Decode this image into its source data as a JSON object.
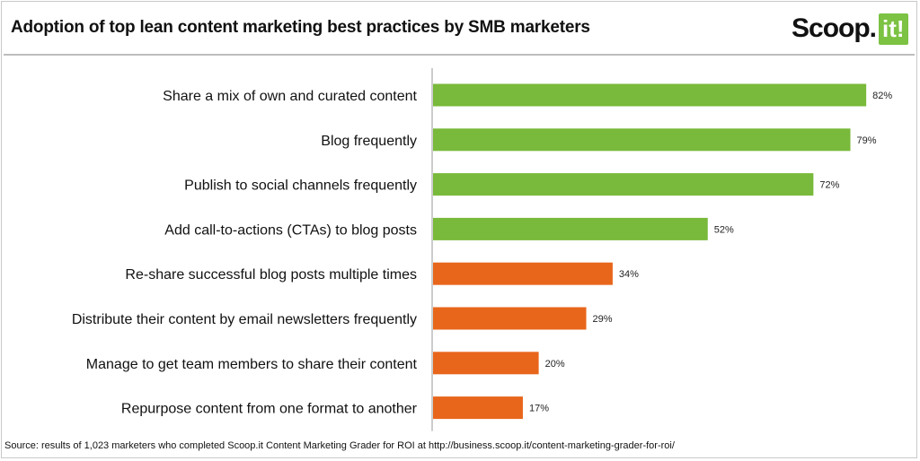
{
  "header": {
    "title": "Adoption of top lean content marketing best practices by SMB marketers",
    "logo_text": "Scoop.",
    "logo_mark": "it!"
  },
  "footer": {
    "source": "Source: results of 1,023 marketers who completed Scoop.it Content Marketing Grader for ROI at http://business.scoop.it/content-marketing-grader-for-roi/"
  },
  "colors": {
    "green": "#79b93b",
    "orange": "#e8661c"
  },
  "chart_data": {
    "type": "bar",
    "orientation": "horizontal",
    "title": "Adoption of top lean content marketing best practices by SMB marketers",
    "categories": [
      "Share a mix of own and curated content",
      "Blog frequently",
      "Publish to social channels frequently",
      "Add call-to-actions (CTAs) to blog posts",
      "Re-share successful blog posts multiple times",
      "Distribute their content by email newsletters frequently",
      "Manage to get team members to share their content",
      "Repurpose content from one format to another"
    ],
    "values": [
      82,
      79,
      72,
      52,
      34,
      29,
      20,
      17
    ],
    "value_labels": [
      "82%",
      "79%",
      "72%",
      "52%",
      "34%",
      "29%",
      "20%",
      "17%"
    ],
    "bar_colors": [
      "green",
      "green",
      "green",
      "green",
      "orange",
      "orange",
      "orange",
      "orange"
    ],
    "xlim": [
      0,
      100
    ],
    "grid": false,
    "legend": "none"
  }
}
